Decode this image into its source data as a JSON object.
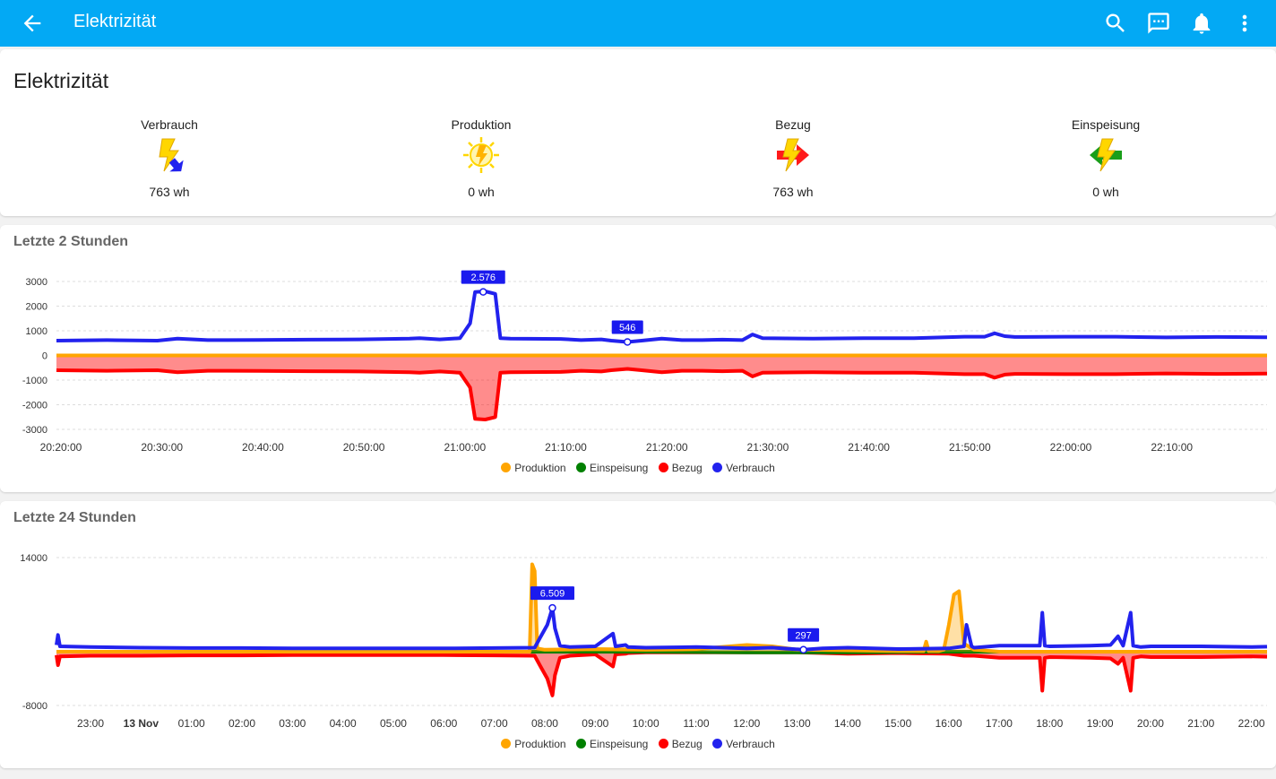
{
  "appbar": {
    "title": "Elektrizität",
    "back_icon": "arrow-back-icon",
    "actions": [
      "search-icon",
      "chat-icon",
      "bell-icon",
      "more-vert-icon"
    ]
  },
  "overview": {
    "title": "Elektrizität",
    "stats": [
      {
        "label": "Verbrauch",
        "value": "763 wh",
        "icon": "lightning-down-icon"
      },
      {
        "label": "Produktion",
        "value": "0 wh",
        "icon": "solar-lightning-icon"
      },
      {
        "label": "Bezug",
        "value": "763 wh",
        "icon": "grid-import-icon"
      },
      {
        "label": "Einspeisung",
        "value": "0 wh",
        "icon": "grid-export-icon"
      }
    ]
  },
  "colors": {
    "produktion": "#ffa500",
    "einspeisung": "#008000",
    "bezug": "#ff0000",
    "verbrauch": "#2222ee",
    "accent": "#03a9f4"
  },
  "chart_data": [
    {
      "title": "Letzte 2 Stunden",
      "type": "line",
      "yticks": [
        "3000",
        "2000",
        "1000",
        "0",
        "-1000",
        "-2000",
        "-3000"
      ],
      "ylim": [
        -3000,
        3000
      ],
      "xticks": [
        "20:20:00",
        "20:30:00",
        "20:40:00",
        "20:50:00",
        "21:00:00",
        "21:10:00",
        "21:20:00",
        "21:30:00",
        "21:40:00",
        "21:50:00",
        "22:00:00",
        "22:10:00"
      ],
      "x_range_minutes": [
        0,
        120
      ],
      "legend": [
        "Produktion",
        "Einspeisung",
        "Bezug",
        "Verbrauch"
      ],
      "annotations": [
        {
          "label": "2.576",
          "x": 42.3,
          "y": 2576
        },
        {
          "label": "546",
          "x": 56.6,
          "y": 546
        }
      ],
      "series": [
        {
          "name": "Verbrauch",
          "x": [
            0,
            5,
            10,
            12,
            15,
            20,
            25,
            30,
            35,
            36,
            38,
            40,
            41,
            41.5,
            42.5,
            43.5,
            44,
            45,
            50,
            52,
            54,
            55,
            56.6,
            58,
            60,
            62,
            64,
            66,
            68,
            69,
            70,
            75,
            80,
            85,
            90,
            92,
            93,
            94,
            95,
            100,
            105,
            110,
            115,
            120
          ],
          "y": [
            600,
            620,
            600,
            680,
            620,
            630,
            640,
            650,
            680,
            700,
            650,
            700,
            1300,
            2576,
            2600,
            2500,
            700,
            680,
            670,
            620,
            650,
            600,
            546,
            600,
            680,
            620,
            620,
            640,
            620,
            850,
            700,
            680,
            700,
            700,
            760,
            760,
            900,
            780,
            750,
            760,
            760,
            730,
            750,
            740
          ]
        },
        {
          "name": "Bezug",
          "x": [
            0,
            5,
            10,
            12,
            15,
            20,
            25,
            30,
            35,
            36,
            38,
            40,
            41,
            41.5,
            42.5,
            43.5,
            44,
            45,
            50,
            52,
            54,
            55,
            56.6,
            58,
            60,
            62,
            64,
            66,
            68,
            69,
            70,
            75,
            80,
            85,
            90,
            92,
            93,
            94,
            95,
            100,
            105,
            110,
            115,
            120
          ],
          "y": [
            -600,
            -620,
            -600,
            -680,
            -620,
            -630,
            -640,
            -650,
            -680,
            -700,
            -650,
            -700,
            -1300,
            -2576,
            -2600,
            -2500,
            -700,
            -680,
            -670,
            -620,
            -650,
            -600,
            -546,
            -600,
            -680,
            -620,
            -620,
            -640,
            -620,
            -850,
            -700,
            -680,
            -700,
            -700,
            -760,
            -760,
            -900,
            -780,
            -750,
            -760,
            -760,
            -730,
            -750,
            -740
          ]
        },
        {
          "name": "Produktion",
          "x": [
            0,
            120
          ],
          "y": [
            0,
            0
          ]
        },
        {
          "name": "Einspeisung",
          "x": [
            0,
            120
          ],
          "y": [
            0,
            0
          ]
        }
      ]
    },
    {
      "title": "Letzte 24 Stunden",
      "type": "line",
      "yticks": [
        "14000",
        "-8000"
      ],
      "ylim": [
        -8000,
        14000
      ],
      "xticks": [
        "23:00",
        "13 Nov",
        "01:00",
        "02:00",
        "03:00",
        "04:00",
        "05:00",
        "06:00",
        "07:00",
        "08:00",
        "09:00",
        "10:00",
        "11:00",
        "12:00",
        "13:00",
        "14:00",
        "15:00",
        "16:00",
        "17:00",
        "18:00",
        "19:00",
        "20:00",
        "21:00",
        "22:00"
      ],
      "x_range_hours": [
        22.33,
        46.3
      ],
      "legend": [
        "Produktion",
        "Einspeisung",
        "Bezug",
        "Verbrauch"
      ],
      "annotations": [
        {
          "label": "6.509",
          "x": 32.15,
          "y": 6509
        },
        {
          "label": "297",
          "x": 37.12,
          "y": 297
        }
      ],
      "series": [
        {
          "name": "Verbrauch",
          "x": [
            22.33,
            22.36,
            22.4,
            23.0,
            24.0,
            25.0,
            26.0,
            27.0,
            28.0,
            29.0,
            30.0,
            31.0,
            31.8,
            31.9,
            32.05,
            32.15,
            32.2,
            32.3,
            32.5,
            33.0,
            33.35,
            33.4,
            33.6,
            33.65,
            34.0,
            35.0,
            36.0,
            36.5,
            37.12,
            37.5,
            38.0,
            39.0,
            40.0,
            40.3,
            40.35,
            40.45,
            40.5,
            41.0,
            41.8,
            41.85,
            41.9,
            42.0,
            42.8,
            43.2,
            43.35,
            43.45,
            43.6,
            43.65,
            43.8,
            44.0,
            45.0,
            46.0,
            46.3
          ],
          "y": [
            1000,
            2500,
            800,
            700,
            600,
            550,
            550,
            500,
            500,
            500,
            500,
            550,
            600,
            2000,
            4000,
            6509,
            3500,
            900,
            700,
            800,
            2700,
            800,
            1000,
            700,
            600,
            700,
            500,
            600,
            297,
            500,
            600,
            400,
            500,
            800,
            4000,
            800,
            600,
            900,
            900,
            5800,
            900,
            800,
            900,
            1000,
            2300,
            900,
            5800,
            900,
            700,
            800,
            800,
            700,
            750
          ]
        },
        {
          "name": "Bezug",
          "x": [
            22.33,
            22.36,
            22.4,
            23.0,
            24.0,
            25.0,
            26.0,
            27.0,
            28.0,
            29.0,
            30.0,
            31.0,
            31.8,
            31.9,
            32.05,
            32.15,
            32.2,
            32.3,
            32.5,
            33.0,
            33.35,
            33.4,
            33.6,
            33.65,
            34.0,
            35.0,
            36.0,
            37.0,
            38.0,
            39.0,
            40.0,
            40.3,
            40.35,
            40.45,
            40.5,
            41.0,
            41.8,
            41.85,
            41.9,
            42.0,
            42.8,
            43.2,
            43.35,
            43.45,
            43.6,
            43.65,
            43.8,
            44.0,
            45.0,
            46.0,
            46.3
          ],
          "y": [
            -500,
            -2000,
            -700,
            -600,
            -600,
            -550,
            -550,
            -500,
            -500,
            -500,
            -500,
            -550,
            -600,
            -2000,
            -4000,
            -6500,
            -3500,
            -900,
            -600,
            -400,
            -2200,
            -400,
            -300,
            -200,
            -100,
            -100,
            -100,
            -100,
            -300,
            -200,
            -300,
            -600,
            -600,
            -600,
            -600,
            -900,
            -900,
            -5800,
            -900,
            -800,
            -900,
            -1000,
            -1800,
            -900,
            -5800,
            -900,
            -700,
            -800,
            -800,
            -700,
            -750
          ]
        },
        {
          "name": "Produktion",
          "x": [
            22.33,
            31.7,
            31.75,
            31.8,
            31.85,
            32.0,
            33.0,
            34.0,
            35.0,
            36.0,
            36.5,
            37.0,
            38.0,
            39.0,
            39.5,
            39.55,
            39.6,
            39.8,
            39.9,
            40.0,
            40.1,
            40.2,
            40.3,
            40.5,
            41.0,
            43.0,
            46.3
          ],
          "y": [
            0,
            0,
            13000,
            12000,
            500,
            300,
            400,
            300,
            400,
            1000,
            800,
            300,
            200,
            100,
            100,
            1500,
            100,
            100,
            300,
            4000,
            8500,
            9000,
            1200,
            300,
            0,
            0,
            0
          ]
        },
        {
          "name": "Einspeisung",
          "x": [
            22.33,
            32.0,
            34.0,
            36.0,
            38.0,
            40.0,
            46.3
          ],
          "y": [
            0,
            0,
            0,
            -100,
            -100,
            0,
            0
          ]
        }
      ]
    }
  ]
}
